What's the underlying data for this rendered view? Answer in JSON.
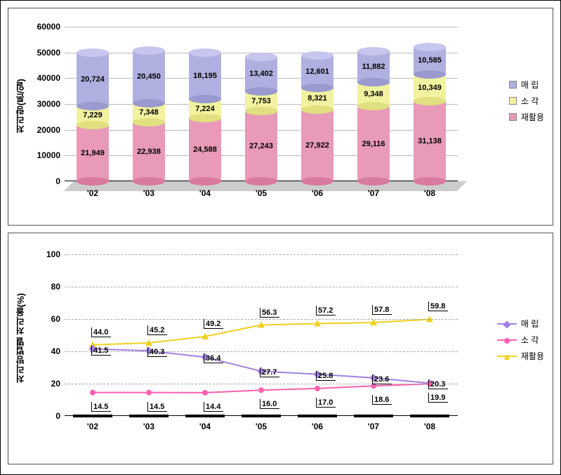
{
  "colors": {
    "landfill": "#b0b0e0",
    "landfill_top": "#c6c6ee",
    "landfill_bot": "#9a9ad0",
    "incin": "#f2f2a0",
    "incin_top": "#fafac8",
    "incin_bot": "#e0e080",
    "recycle": "#e89ab8",
    "recycle_top": "#f4bfd2",
    "recycle_bot": "#d87aa0",
    "line_landfill": "#a080e0",
    "line_incin": "#ff60b0",
    "line_recycle": "#f0d020",
    "grid": "#bbbbbb",
    "dash": "#aaaaaa"
  },
  "bar_chart": {
    "y_label": "처리량(톤/일)",
    "y_ticks": [
      0,
      10000,
      20000,
      30000,
      40000,
      50000,
      60000
    ],
    "y_max": 60000,
    "categories": [
      "'02",
      "'03",
      "'04",
      "'05",
      "'06",
      "'07",
      "'08"
    ],
    "series": {
      "recycle": {
        "label": "재활용",
        "values": [
          21949,
          22938,
          24588,
          27243,
          27922,
          29116,
          31138
        ],
        "display": [
          "21,949",
          "22,938",
          "24,588",
          "27,243",
          "27,922",
          "29,116",
          "31,138"
        ]
      },
      "incin": {
        "label": "소 각",
        "values": [
          7229,
          7348,
          7224,
          7753,
          8321,
          9348,
          10349
        ],
        "display": [
          "7,229",
          "7,348",
          "7,224",
          "7,753",
          "8,321",
          "9,348",
          "10,349"
        ]
      },
      "landfill": {
        "label": "매 립",
        "values": [
          20724,
          20450,
          18195,
          13402,
          12601,
          11882,
          10585
        ],
        "display": [
          "20,724",
          "20,450",
          "18,195",
          "13,402",
          "12,601",
          "11,882",
          "10,585"
        ]
      }
    },
    "legend_order": [
      "landfill",
      "incin",
      "recycle"
    ],
    "legend_labels": {
      "landfill": "매 립",
      "incin": "소 각",
      "recycle": "재활용"
    }
  },
  "line_chart": {
    "y_label": "처리방법별 처리율(%)",
    "y_ticks": [
      0,
      20,
      40,
      60,
      80,
      100
    ],
    "y_max": 100,
    "categories": [
      "'02",
      "'03",
      "'04",
      "'05",
      "'06",
      "'07",
      "'08"
    ],
    "series": {
      "landfill": {
        "label": "매 립",
        "marker": "diamond",
        "values": [
          41.5,
          40.3,
          36.4,
          27.7,
          25.8,
          23.6,
          20.3
        ]
      },
      "incin": {
        "label": "소 각",
        "marker": "circle",
        "values": [
          14.5,
          14.5,
          14.4,
          16.0,
          17.0,
          18.6,
          19.9
        ]
      },
      "recycle": {
        "label": "재활용",
        "marker": "triangle",
        "values": [
          44.0,
          45.2,
          49.2,
          56.3,
          57.2,
          57.8,
          59.8
        ]
      }
    },
    "legend_order": [
      "landfill",
      "incin",
      "recycle"
    ]
  }
}
